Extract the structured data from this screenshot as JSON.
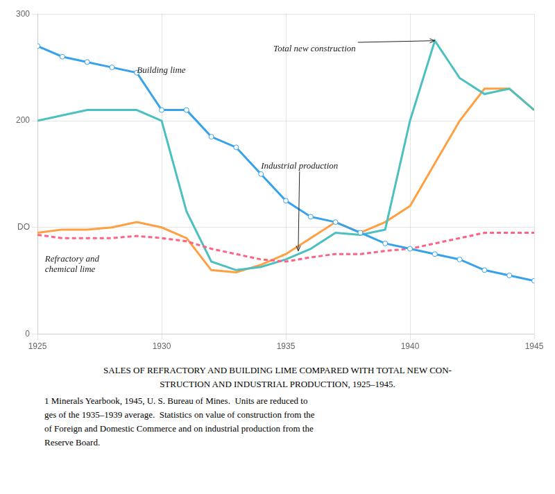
{
  "chart_data": {
    "type": "line",
    "title": [
      "SALES OF REFRACTORY AND BUILDING LIME COMPARED WITH TOTAL NEW CON-",
      "STRUCTION AND INDUSTRIAL PRODUCTION, 1925–1945."
    ],
    "notes": [
      "1 Minerals Yearbook, 1945, U. S. Bureau of Mines.  Units are reduced to",
      "ges of the 1935–1939 average.  Statistics on value of construction from the",
      "of Foreign and Domestic Commerce and on industrial production from the",
      "Reserve Board."
    ],
    "x": [
      1925,
      1926,
      1927,
      1928,
      1929,
      1930,
      1931,
      1932,
      1933,
      1934,
      1935,
      1936,
      1937,
      1938,
      1939,
      1940,
      1941,
      1942,
      1943,
      1944,
      1945
    ],
    "series": [
      {
        "name": "Building lime",
        "marker": "circle",
        "line_style": "solid",
        "values": [
          270,
          260,
          255,
          250,
          245,
          210,
          210,
          185,
          175,
          150,
          125,
          110,
          105,
          95,
          85,
          80,
          75,
          70,
          60,
          55,
          50
        ]
      },
      {
        "name": "Refractory and chemical lime",
        "marker": "none",
        "line_style": "dashed",
        "values": [
          93,
          90,
          90,
          90,
          92,
          90,
          87,
          80,
          75,
          70,
          68,
          72,
          75,
          75,
          78,
          80,
          85,
          90,
          95,
          95,
          95
        ]
      },
      {
        "name": "Total new construction",
        "marker": "none",
        "line_style": "solid",
        "values": [
          200,
          205,
          210,
          210,
          210,
          200,
          115,
          68,
          60,
          63,
          70,
          80,
          95,
          93,
          98,
          200,
          275,
          240,
          225,
          230,
          210
        ]
      },
      {
        "name": "Industrial production",
        "marker": "none",
        "line_style": "solid",
        "values": [
          95,
          98,
          98,
          100,
          105,
          100,
          90,
          60,
          58,
          65,
          75,
          90,
          105,
          95,
          105,
          120,
          160,
          200,
          230,
          230,
          210
        ]
      }
    ],
    "annotations": [
      {
        "text": "Building lime",
        "x": 1929,
        "y": 245
      },
      {
        "text": "Refractory and\nchemical lime",
        "x": 1925.3,
        "y": 68
      },
      {
        "text": "Total new construction",
        "x": 1934.5,
        "y": 265,
        "arrow_x": 1941,
        "arrow_y": 275
      },
      {
        "text": "Industrial production",
        "x": 1934,
        "y": 155,
        "arrow_x": 1935.5,
        "arrow_y": 78
      }
    ],
    "xlim": [
      1925,
      1945
    ],
    "xticks": [
      1925,
      1930,
      1935,
      1940,
      1945
    ],
    "ylim": [
      0,
      300
    ],
    "yticks": [
      0,
      {
        "value": 100,
        "label": "DO"
      },
      200,
      300
    ],
    "grid": true,
    "legend": false
  }
}
